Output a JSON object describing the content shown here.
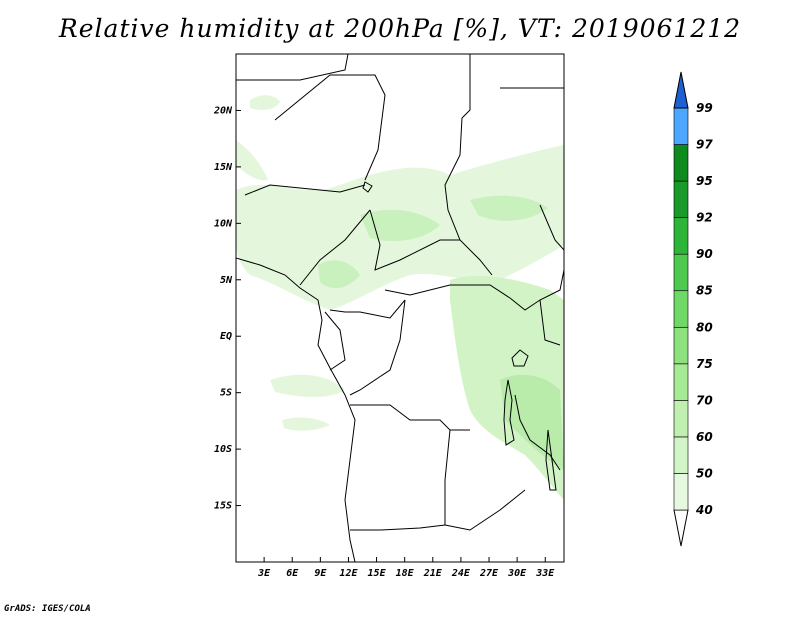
{
  "title": "Relative humidity at 200hPa [%], VT: 2019061212",
  "credit": "GrADS: IGES/COLA",
  "map": {
    "lon_range": [
      0,
      35
    ],
    "lat_range": [
      -20,
      25
    ],
    "y_ticks": [
      {
        "lat": 20,
        "label": "20N"
      },
      {
        "lat": 15,
        "label": "15N"
      },
      {
        "lat": 10,
        "label": "10N"
      },
      {
        "lat": 5,
        "label": "5N"
      },
      {
        "lat": 0,
        "label": "EQ"
      },
      {
        "lat": -5,
        "label": "5S"
      },
      {
        "lat": -10,
        "label": "10S"
      },
      {
        "lat": -15,
        "label": "15S"
      }
    ],
    "x_ticks": [
      {
        "lon": 3,
        "label": "3E"
      },
      {
        "lon": 6,
        "label": "6E"
      },
      {
        "lon": 9,
        "label": "9E"
      },
      {
        "lon": 12,
        "label": "12E"
      },
      {
        "lon": 15,
        "label": "15E"
      },
      {
        "lon": 18,
        "label": "18E"
      },
      {
        "lon": 21,
        "label": "21E"
      },
      {
        "lon": 24,
        "label": "24E"
      },
      {
        "lon": 27,
        "label": "27E"
      },
      {
        "lon": 30,
        "label": "30E"
      },
      {
        "lon": 33,
        "label": "33E"
      }
    ]
  },
  "colorbar": {
    "levels": [
      "40",
      "50",
      "60",
      "70",
      "75",
      "80",
      "85",
      "90",
      "92",
      "95",
      "97",
      "99"
    ],
    "colors": [
      "#ffffff",
      "#e6f9e0",
      "#d2f5c8",
      "#bff0b0",
      "#a6ea96",
      "#8de27e",
      "#6fd866",
      "#4fc84f",
      "#2fb43a",
      "#1a9a2a",
      "#0f8a1c",
      "#4da6ff",
      "#2a7fe8",
      "#1e5fd2"
    ]
  }
}
